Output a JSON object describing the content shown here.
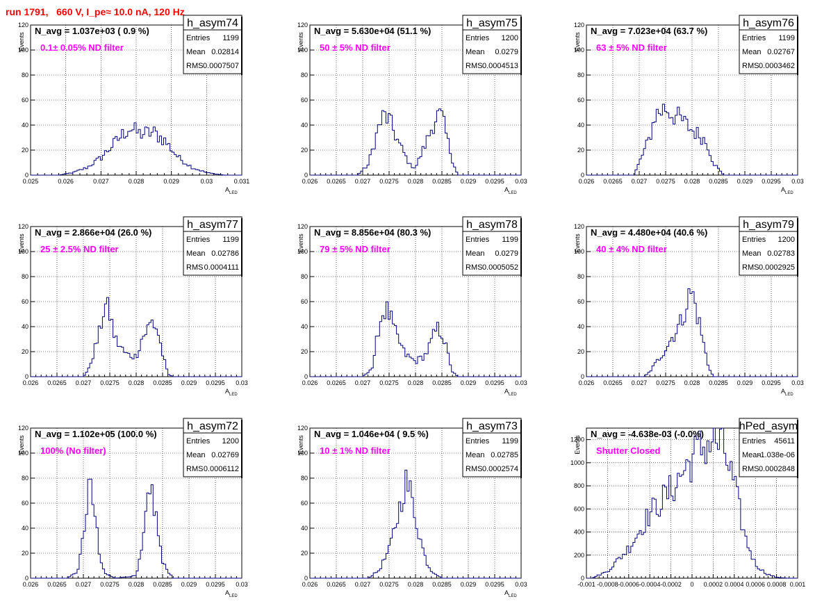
{
  "run_title": "run 1791,   660 V, I_pe≈ 10.0 nA, 120 Hz",
  "chart_data": [
    {
      "type": "histogram",
      "name": "h_asym74",
      "n_avg": "N_avg = 1.037e+03 ( 0.9 %)",
      "note": "0.1± 0.05% ND filter",
      "stats": {
        "entries": "1199",
        "mean": "0.02814",
        "rms": "0.0007507"
      },
      "ylabel": "Events",
      "xlabel": "A",
      "xlabel_sub": "LED",
      "xlim": [
        0.025,
        0.031
      ],
      "ylim": [
        0,
        120
      ],
      "xticks": [
        "0.025",
        "0.026",
        "0.027",
        "0.028",
        "0.029",
        "0.03",
        "0.031"
      ],
      "yticks": [
        "0",
        "20",
        "40",
        "60",
        "80",
        "100",
        "120"
      ],
      "profile": [
        [
          0.0258,
          0
        ],
        [
          0.0262,
          2
        ],
        [
          0.0266,
          6
        ],
        [
          0.027,
          14
        ],
        [
          0.0274,
          26
        ],
        [
          0.0278,
          38
        ],
        [
          0.0281,
          33
        ],
        [
          0.0285,
          34
        ],
        [
          0.0288,
          28
        ],
        [
          0.0292,
          14
        ],
        [
          0.0296,
          6
        ],
        [
          0.03,
          2
        ],
        [
          0.0305,
          0
        ]
      ]
    },
    {
      "type": "histogram",
      "name": "h_asym75",
      "n_avg": "N_avg = 5.630e+04 (51.1 %)",
      "note": "50 ± 5% ND filter",
      "stats": {
        "entries": "1200",
        "mean": "0.0279",
        "rms": "0.0004513"
      },
      "ylabel": "Events",
      "xlabel": "A",
      "xlabel_sub": "LED",
      "xlim": [
        0.026,
        0.03
      ],
      "ylim": [
        0,
        120
      ],
      "xticks": [
        "0.026",
        "0.0265",
        "0.027",
        "0.0275",
        "0.028",
        "0.0285",
        "0.029",
        "0.0295",
        "0.03"
      ],
      "yticks": [
        "0",
        "20",
        "40",
        "60",
        "80",
        "100",
        "120"
      ],
      "profile": [
        [
          0.0269,
          0
        ],
        [
          0.0271,
          8
        ],
        [
          0.0273,
          38
        ],
        [
          0.0274,
          48
        ],
        [
          0.0275,
          44
        ],
        [
          0.0277,
          24
        ],
        [
          0.0279,
          8
        ],
        [
          0.028,
          6
        ],
        [
          0.0282,
          26
        ],
        [
          0.0284,
          48
        ],
        [
          0.0285,
          46
        ],
        [
          0.0287,
          12
        ],
        [
          0.0288,
          0
        ]
      ]
    },
    {
      "type": "histogram",
      "name": "h_asym76",
      "n_avg": "N_avg = 7.023e+04 (63.7 %)",
      "note": "63 ± 5% ND filter",
      "stats": {
        "entries": "1199",
        "mean": "0.02767",
        "rms": "0.0003462"
      },
      "ylabel": "Events",
      "xlabel": "A",
      "xlabel_sub": "LED",
      "xlim": [
        0.026,
        0.03
      ],
      "ylim": [
        0,
        120
      ],
      "xticks": [
        "0.026",
        "0.0265",
        "0.027",
        "0.0275",
        "0.028",
        "0.0285",
        "0.029",
        "0.0295",
        "0.03"
      ],
      "yticks": [
        "0",
        "20",
        "40",
        "60",
        "80",
        "100",
        "120"
      ],
      "profile": [
        [
          0.0269,
          0
        ],
        [
          0.027,
          10
        ],
        [
          0.0272,
          30
        ],
        [
          0.0273,
          48
        ],
        [
          0.0275,
          54
        ],
        [
          0.0276,
          50
        ],
        [
          0.0278,
          44
        ],
        [
          0.028,
          36
        ],
        [
          0.0282,
          30
        ],
        [
          0.0283,
          24
        ],
        [
          0.0284,
          10
        ],
        [
          0.0286,
          0
        ]
      ]
    },
    {
      "type": "histogram",
      "name": "h_asym77",
      "n_avg": "N_avg = 2.866e+04 (26.0 %)",
      "note": "25 ± 2.5% ND filter",
      "stats": {
        "entries": "1199",
        "mean": "0.02786",
        "rms": "0.0004111"
      },
      "ylabel": "Events",
      "xlabel": "A",
      "xlabel_sub": "LED",
      "xlim": [
        0.026,
        0.03
      ],
      "ylim": [
        0,
        120
      ],
      "xticks": [
        "0.026",
        "0.0265",
        "0.027",
        "0.0275",
        "0.028",
        "0.0285",
        "0.029",
        "0.0295",
        "0.03"
      ],
      "yticks": [
        "0",
        "20",
        "40",
        "60",
        "80",
        "100",
        "120"
      ],
      "profile": [
        [
          0.027,
          0
        ],
        [
          0.0271,
          6
        ],
        [
          0.0273,
          34
        ],
        [
          0.0274,
          58
        ],
        [
          0.0275,
          50
        ],
        [
          0.0276,
          30
        ],
        [
          0.0278,
          18
        ],
        [
          0.028,
          16
        ],
        [
          0.0281,
          30
        ],
        [
          0.0283,
          44
        ],
        [
          0.0284,
          38
        ],
        [
          0.0285,
          18
        ],
        [
          0.0286,
          2
        ],
        [
          0.0287,
          0
        ]
      ]
    },
    {
      "type": "histogram",
      "name": "h_asym78",
      "n_avg": "N_avg = 8.856e+04 (80.3 %)",
      "note": "79 ± 5% ND filter",
      "stats": {
        "entries": "1199",
        "mean": "0.0279",
        "rms": "0.0005052"
      },
      "ylabel": "Events",
      "xlabel": "A",
      "xlabel_sub": "LED",
      "xlim": [
        0.026,
        0.03
      ],
      "ylim": [
        0,
        120
      ],
      "xticks": [
        "0.026",
        "0.0265",
        "0.027",
        "0.0275",
        "0.028",
        "0.0285",
        "0.029",
        "0.0295",
        "0.03"
      ],
      "yticks": [
        "0",
        "20",
        "40",
        "60",
        "80",
        "100",
        "120"
      ],
      "profile": [
        [
          0.027,
          0
        ],
        [
          0.0272,
          8
        ],
        [
          0.0273,
          40
        ],
        [
          0.0274,
          54
        ],
        [
          0.0275,
          50
        ],
        [
          0.0276,
          36
        ],
        [
          0.0278,
          18
        ],
        [
          0.028,
          12
        ],
        [
          0.0282,
          18
        ],
        [
          0.0284,
          38
        ],
        [
          0.0285,
          36
        ],
        [
          0.0286,
          20
        ],
        [
          0.0287,
          4
        ],
        [
          0.0288,
          0
        ]
      ]
    },
    {
      "type": "histogram",
      "name": "h_asym79",
      "n_avg": "N_avg = 4.480e+04 (40.6 %)",
      "note": "40 ± 4% ND filter",
      "stats": {
        "entries": "1200",
        "mean": "0.02783",
        "rms": "0.0002925"
      },
      "ylabel": "Events",
      "xlabel": "A",
      "xlabel_sub": "LED",
      "xlim": [
        0.026,
        0.03
      ],
      "ylim": [
        0,
        120
      ],
      "xticks": [
        "0.026",
        "0.0265",
        "0.027",
        "0.0275",
        "0.028",
        "0.0285",
        "0.029",
        "0.0295",
        "0.03"
      ],
      "yticks": [
        "0",
        "20",
        "40",
        "60",
        "80",
        "100",
        "120"
      ],
      "profile": [
        [
          0.0271,
          0
        ],
        [
          0.0272,
          4
        ],
        [
          0.0274,
          16
        ],
        [
          0.0276,
          30
        ],
        [
          0.0278,
          44
        ],
        [
          0.0279,
          60
        ],
        [
          0.028,
          68
        ],
        [
          0.0281,
          50
        ],
        [
          0.0282,
          30
        ],
        [
          0.0283,
          10
        ],
        [
          0.0284,
          0
        ]
      ]
    },
    {
      "type": "histogram",
      "name": "h_asym72",
      "n_avg": "N_avg = 1.102e+05 (100.0 %)",
      "note": "100% (No filter)",
      "stats": {
        "entries": "1200",
        "mean": "0.02769",
        "rms": "0.0006112"
      },
      "ylabel": "Events",
      "xlabel": "A",
      "xlabel_sub": "LED",
      "xlim": [
        0.026,
        0.03
      ],
      "ylim": [
        0,
        120
      ],
      "xticks": [
        "0.026",
        "0.0265",
        "0.027",
        "0.0275",
        "0.028",
        "0.0285",
        "0.029",
        "0.0295",
        "0.03"
      ],
      "yticks": [
        "0",
        "20",
        "40",
        "60",
        "80",
        "100",
        "120"
      ],
      "profile": [
        [
          0.0267,
          0
        ],
        [
          0.0269,
          6
        ],
        [
          0.027,
          34
        ],
        [
          0.0271,
          74
        ],
        [
          0.0272,
          58
        ],
        [
          0.0273,
          18
        ],
        [
          0.0274,
          4
        ],
        [
          0.0276,
          0
        ],
        [
          0.028,
          2
        ],
        [
          0.0281,
          20
        ],
        [
          0.0282,
          54
        ],
        [
          0.0283,
          70
        ],
        [
          0.0284,
          42
        ],
        [
          0.0285,
          12
        ],
        [
          0.0287,
          0
        ]
      ]
    },
    {
      "type": "histogram",
      "name": "h_asym73",
      "n_avg": "N_avg = 1.046e+04 ( 9.5 %)",
      "note": "10 ± 1% ND filter",
      "stats": {
        "entries": "1199",
        "mean": "0.02785",
        "rms": "0.0002574"
      },
      "ylabel": "Events",
      "xlabel": "A",
      "xlabel_sub": "LED",
      "xlim": [
        0.026,
        0.03
      ],
      "ylim": [
        0,
        120
      ],
      "xticks": [
        "0.026",
        "0.0265",
        "0.027",
        "0.0275",
        "0.028",
        "0.0285",
        "0.029",
        "0.0295",
        "0.03"
      ],
      "yticks": [
        "0",
        "20",
        "40",
        "60",
        "80",
        "100",
        "120"
      ],
      "profile": [
        [
          0.0271,
          0
        ],
        [
          0.0273,
          6
        ],
        [
          0.0275,
          22
        ],
        [
          0.0277,
          56
        ],
        [
          0.0278,
          78
        ],
        [
          0.0279,
          68
        ],
        [
          0.028,
          50
        ],
        [
          0.0281,
          30
        ],
        [
          0.0282,
          14
        ],
        [
          0.0283,
          6
        ],
        [
          0.0285,
          0
        ]
      ]
    },
    {
      "type": "histogram",
      "name": "hPed_asym",
      "n_avg": "N_avg = -4.638e-03 (-0.0%)",
      "note": "Shutter Closed",
      "stats": {
        "entries": "45611",
        "mean": "-1.038e-06",
        "rms": "0.0002848"
      },
      "ylabel": "Events",
      "xlabel": "",
      "xlabel_sub": "",
      "xlim": [
        -0.001,
        0.001
      ],
      "ylim": [
        0,
        1300
      ],
      "xticks": [
        "-0.001",
        "-0.0008",
        "-0.0006",
        "-0.0004",
        "-0.0002",
        "0",
        "0.0002",
        "0.0004",
        "0.0006",
        "0.0008",
        "0.001"
      ],
      "yticks": [
        "0",
        "200",
        "400",
        "600",
        "800",
        "1000",
        "1200"
      ],
      "profile": [
        [
          -0.00095,
          0
        ],
        [
          -0.0008,
          60
        ],
        [
          -0.0006,
          260
        ],
        [
          -0.0004,
          560
        ],
        [
          -0.0003,
          660
        ],
        [
          -0.0002,
          760
        ],
        [
          -0.0001,
          900
        ],
        [
          0.0,
          1040
        ],
        [
          0.0001,
          1140
        ],
        [
          0.0002,
          1200
        ],
        [
          0.0003,
          1120
        ],
        [
          0.0004,
          800
        ],
        [
          0.0005,
          360
        ],
        [
          0.0006,
          120
        ],
        [
          0.0007,
          40
        ],
        [
          0.0008,
          8
        ],
        [
          0.0009,
          0
        ]
      ]
    }
  ]
}
